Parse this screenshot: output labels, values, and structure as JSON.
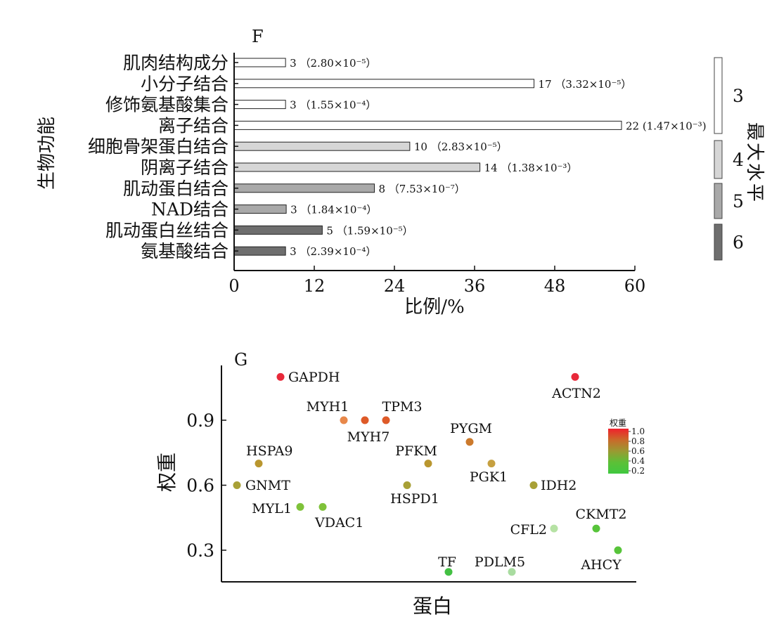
{
  "chart_data": [
    {
      "type": "bar",
      "orientation": "horizontal",
      "panel_label": "F",
      "ylabel": "生物功能",
      "xlabel": "比例/%",
      "xlim": [
        0,
        60
      ],
      "xticks": [
        "0",
        "12",
        "24",
        "36",
        "48",
        "60"
      ],
      "categories": [
        "肌肉结构成分",
        "小分子结合",
        "修饰氨基酸集合",
        "离子结合",
        "细胞骨架蛋白结合",
        "阴离子结合",
        "肌动蛋白结合",
        "NAD结合",
        "肌动蛋白丝结合",
        "氨基酸结合"
      ],
      "values": [
        7.7,
        44.9,
        7.7,
        58.0,
        26.3,
        36.8,
        21.0,
        7.8,
        13.2,
        7.7
      ],
      "counts": [
        3,
        17,
        3,
        22,
        10,
        14,
        8,
        3,
        5,
        3
      ],
      "count_labels": [
        "3",
        "17",
        "3",
        "22",
        "10",
        "14",
        "8",
        "3",
        "5",
        "3"
      ],
      "pvalue_labels": [
        "（2.80×10⁻⁵）",
        "（3.32×10⁻⁵）",
        "（1.55×10⁻⁴）",
        "(1.47×10⁻³)",
        "（2.83×10⁻⁵）",
        "（1.38×10⁻³）",
        "（7.53×10⁻⁷）",
        "（1.84×10⁻⁴）",
        "（1.59×10⁻⁵）",
        "（2.39×10⁻⁴）"
      ],
      "level": [
        3,
        3,
        3,
        3,
        4,
        4,
        5,
        5,
        6,
        6
      ],
      "legend": {
        "title": "最大水平",
        "items": [
          {
            "label": "3",
            "color": "#ffffff"
          },
          {
            "label": "4",
            "color": "#d6d6d6"
          },
          {
            "label": "5",
            "color": "#a9a9a9"
          },
          {
            "label": "6",
            "color": "#6e6e6e"
          }
        ]
      },
      "grid": false
    },
    {
      "type": "scatter",
      "panel_label": "G",
      "ylabel": "权重",
      "xlabel": "蛋白",
      "ylim": [
        0.2,
        1.1
      ],
      "yticks": [
        "0.3",
        "0.6",
        "0.9"
      ],
      "points": [
        {
          "label": "GNMT",
          "x": 1,
          "y": 0.6,
          "color": "#a8a036"
        },
        {
          "label": "GAPDH",
          "x": 3,
          "y": 1.1,
          "color": "#e8293a"
        },
        {
          "label": "HSPA9",
          "x": 2,
          "y": 0.7,
          "color": "#b9962f"
        },
        {
          "label": "MYL1",
          "x": 4,
          "y": 0.5,
          "color": "#7fc23a"
        },
        {
          "label": "VDAC1",
          "x": 5,
          "y": 0.5,
          "color": "#7fc23a"
        },
        {
          "label": "MYH1",
          "x": 6,
          "y": 0.9,
          "color": "#e8884a"
        },
        {
          "label": "MYH7",
          "x": 7,
          "y": 0.9,
          "color": "#de5a28"
        },
        {
          "label": "TPM3",
          "x": 8,
          "y": 0.9,
          "color": "#de5a28"
        },
        {
          "label": "HSPD1",
          "x": 9,
          "y": 0.6,
          "color": "#a8a036"
        },
        {
          "label": "PFKM",
          "x": 10,
          "y": 0.7,
          "color": "#b9962f"
        },
        {
          "label": "TF",
          "x": 11,
          "y": 0.2,
          "color": "#43c043"
        },
        {
          "label": "PYGM",
          "x": 12,
          "y": 0.8,
          "color": "#cc7a2c"
        },
        {
          "label": "PDLM5",
          "x": 14,
          "y": 0.2,
          "color": "#a9dca0"
        },
        {
          "label": "PGK1",
          "x": 13,
          "y": 0.7,
          "color": "#c6a040"
        },
        {
          "label": "IDH2",
          "x": 15,
          "y": 0.6,
          "color": "#a8a036"
        },
        {
          "label": "CFL2",
          "x": 16,
          "y": 0.4,
          "color": "#b6e2a4"
        },
        {
          "label": "CKMT2",
          "x": 17,
          "y": 0.4,
          "color": "#57c43a"
        },
        {
          "label": "ACTN2",
          "x": 18,
          "y": 1.1,
          "color": "#e8293a"
        },
        {
          "label": "AHCY",
          "x": 19,
          "y": 0.3,
          "color": "#57c43a"
        }
      ],
      "colorbar": {
        "title": "权重",
        "ticks": [
          "1.0",
          "0.8",
          "0.6",
          "0.4",
          "0.2"
        ],
        "colors": [
          "#f0202c",
          "#c96a2a",
          "#9a9a32",
          "#5cc037",
          "#40c840"
        ]
      }
    }
  ]
}
